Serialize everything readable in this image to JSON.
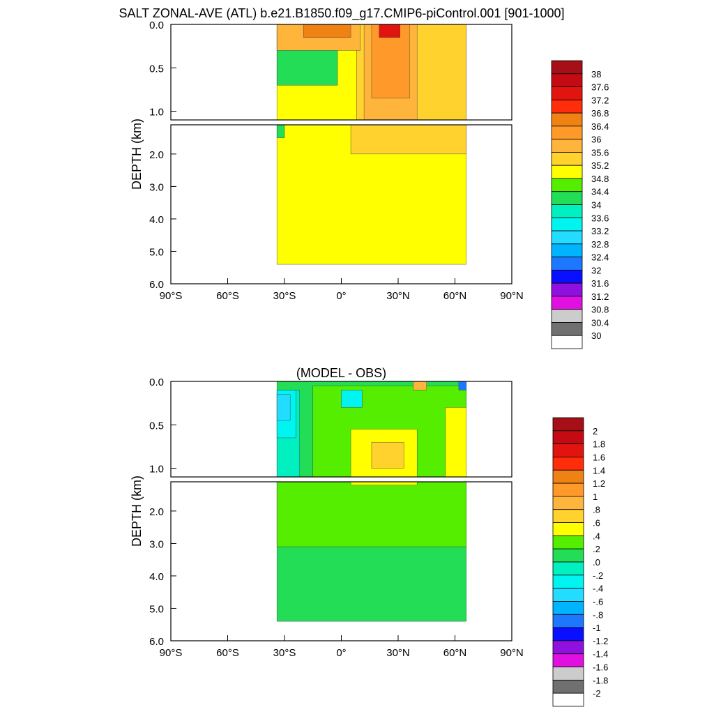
{
  "figure": {
    "title": "SALT ZONAL-AVE (ATL) b.e21.B1850.f09_g17.CMIP6-piControl.001 [901-1000]"
  },
  "chart_data": [
    {
      "type": "heatmap",
      "title": "SALT ZONAL-AVE (ATL) b.e21.B1850.f09_g17.CMIP6-piControl.001 [901-1000]",
      "ylabel": "DEPTH (km)",
      "xlabel": "",
      "x_ticks": [
        "90°S",
        "60°S",
        "30°S",
        "0°",
        "30°N",
        "60°N",
        "90°N"
      ],
      "xlim": [
        -90,
        90
      ],
      "y_ticks_upper": [
        "0.0",
        "0.5",
        "1.0"
      ],
      "ylim_upper": [
        0,
        1.1
      ],
      "y_ticks_lower": [
        "2.0",
        "3.0",
        "4.0",
        "5.0",
        "6.0"
      ],
      "ylim_lower": [
        1.1,
        6.0
      ],
      "data_lat_range": [
        -34,
        66
      ],
      "colorbar": {
        "labels": [
          "38",
          "37.6",
          "37.2",
          "36.8",
          "36.4",
          "36",
          "35.6",
          "35.2",
          "34.8",
          "34.4",
          "34",
          "33.6",
          "33.2",
          "32.8",
          "32.4",
          "32",
          "31.6",
          "31.2",
          "30.8",
          "30.4",
          "30"
        ],
        "colors": [
          "#a50f15",
          "#c40a12",
          "#e2140f",
          "#ff2d0a",
          "#f08214",
          "#ff9a2a",
          "#ffb43c",
          "#ffd22e",
          "#ffff00",
          "#55ee00",
          "#22dd55",
          "#00f0c0",
          "#00f5f0",
          "#22ddff",
          "#00b4ff",
          "#1e78ff",
          "#0a10ff",
          "#9010e0",
          "#e010e0",
          "#cccccc",
          "#707070",
          "#ffffff"
        ]
      },
      "regions_upper": [
        {
          "color": "#ffff00",
          "lat_range": [
            -34,
            66
          ],
          "depth_range": [
            0,
            1.1
          ]
        },
        {
          "color": "#22dd55",
          "lat_range": [
            -34,
            -2
          ],
          "depth_range": [
            0.05,
            0.7
          ]
        },
        {
          "color": "#ffd22e",
          "lat_range": [
            8,
            66
          ],
          "depth_range": [
            0,
            1.1
          ]
        },
        {
          "color": "#ffb43c",
          "lat_range": [
            -34,
            10
          ],
          "depth_range": [
            0,
            0.3
          ]
        },
        {
          "color": "#ffb43c",
          "lat_range": [
            12,
            40
          ],
          "depth_range": [
            0,
            1.1
          ]
        },
        {
          "color": "#ff9a2a",
          "lat_range": [
            16,
            36
          ],
          "depth_range": [
            0,
            0.85
          ]
        },
        {
          "color": "#f08214",
          "lat_range": [
            -20,
            5
          ],
          "depth_range": [
            0,
            0.15
          ]
        },
        {
          "color": "#e2140f",
          "lat_range": [
            20,
            31
          ],
          "depth_range": [
            0,
            0.15
          ]
        }
      ],
      "regions_lower": [
        {
          "color": "#ffff00",
          "lat_range": [
            -34,
            66
          ],
          "depth_range": [
            1.1,
            5.4
          ]
        },
        {
          "color": "#ffd22e",
          "lat_range": [
            5,
            66
          ],
          "depth_range": [
            1.1,
            2.0
          ]
        },
        {
          "color": "#22dd55",
          "lat_range": [
            -34,
            -30
          ],
          "depth_range": [
            1.1,
            1.5
          ]
        }
      ]
    },
    {
      "type": "heatmap",
      "title": "(MODEL - OBS)",
      "ylabel": "DEPTH (km)",
      "xlabel": "",
      "x_ticks": [
        "90°S",
        "60°S",
        "30°S",
        "0°",
        "30°N",
        "60°N",
        "90°N"
      ],
      "xlim": [
        -90,
        90
      ],
      "y_ticks_upper": [
        "0.0",
        "0.5",
        "1.0"
      ],
      "ylim_upper": [
        0,
        1.1
      ],
      "y_ticks_lower": [
        "2.0",
        "3.0",
        "4.0",
        "5.0",
        "6.0"
      ],
      "ylim_lower": [
        1.1,
        6.0
      ],
      "data_lat_range": [
        -34,
        66
      ],
      "colorbar": {
        "labels": [
          "2",
          "1.8",
          "1.6",
          "1.4",
          "1.2",
          "1",
          ".8",
          ".6",
          ".4",
          ".2",
          ".0",
          "-.2",
          "-.4",
          "-.6",
          "-.8",
          "-1",
          "-1.2",
          "-1.4",
          "-1.6",
          "-1.8",
          "-2"
        ],
        "colors": [
          "#a50f15",
          "#c40a12",
          "#e2140f",
          "#ff2d0a",
          "#f08214",
          "#ff9a2a",
          "#ffb43c",
          "#ffd22e",
          "#ffff00",
          "#55ee00",
          "#22dd55",
          "#00f0c0",
          "#00f5f0",
          "#22ddff",
          "#00b4ff",
          "#1e78ff",
          "#0a10ff",
          "#9010e0",
          "#e010e0",
          "#cccccc",
          "#707070",
          "#ffffff"
        ]
      },
      "regions_upper": [
        {
          "color": "#22dd55",
          "lat_range": [
            -34,
            66
          ],
          "depth_range": [
            0,
            1.1
          ]
        },
        {
          "color": "#55ee00",
          "lat_range": [
            -15,
            66
          ],
          "depth_range": [
            0.05,
            1.1
          ]
        },
        {
          "color": "#ffff00",
          "lat_range": [
            5,
            40
          ],
          "depth_range": [
            0.55,
            1.1
          ]
        },
        {
          "color": "#ffd22e",
          "lat_range": [
            16,
            33
          ],
          "depth_range": [
            0.7,
            1.0
          ]
        },
        {
          "color": "#ffff00",
          "lat_range": [
            55,
            66
          ],
          "depth_range": [
            0.3,
            1.1
          ]
        },
        {
          "color": "#00f0c0",
          "lat_range": [
            -34,
            -22
          ],
          "depth_range": [
            0.1,
            1.1
          ]
        },
        {
          "color": "#00f5f0",
          "lat_range": [
            -34,
            -24
          ],
          "depth_range": [
            0.1,
            0.65
          ]
        },
        {
          "color": "#22ddff",
          "lat_range": [
            -34,
            -27
          ],
          "depth_range": [
            0.15,
            0.45
          ]
        },
        {
          "color": "#00f5f0",
          "lat_range": [
            0,
            11
          ],
          "depth_range": [
            0.1,
            0.3
          ]
        },
        {
          "color": "#ffb43c",
          "lat_range": [
            38,
            45
          ],
          "depth_range": [
            0,
            0.1
          ]
        },
        {
          "color": "#1e78ff",
          "lat_range": [
            62,
            66
          ],
          "depth_range": [
            0,
            0.1
          ]
        }
      ],
      "regions_lower": [
        {
          "color": "#22dd55",
          "lat_range": [
            -34,
            66
          ],
          "depth_range": [
            1.1,
            5.4
          ]
        },
        {
          "color": "#55ee00",
          "lat_range": [
            -34,
            66
          ],
          "depth_range": [
            1.1,
            3.1
          ]
        },
        {
          "color": "#ffff00",
          "lat_range": [
            5,
            40
          ],
          "depth_range": [
            1.1,
            1.2
          ]
        }
      ]
    }
  ]
}
